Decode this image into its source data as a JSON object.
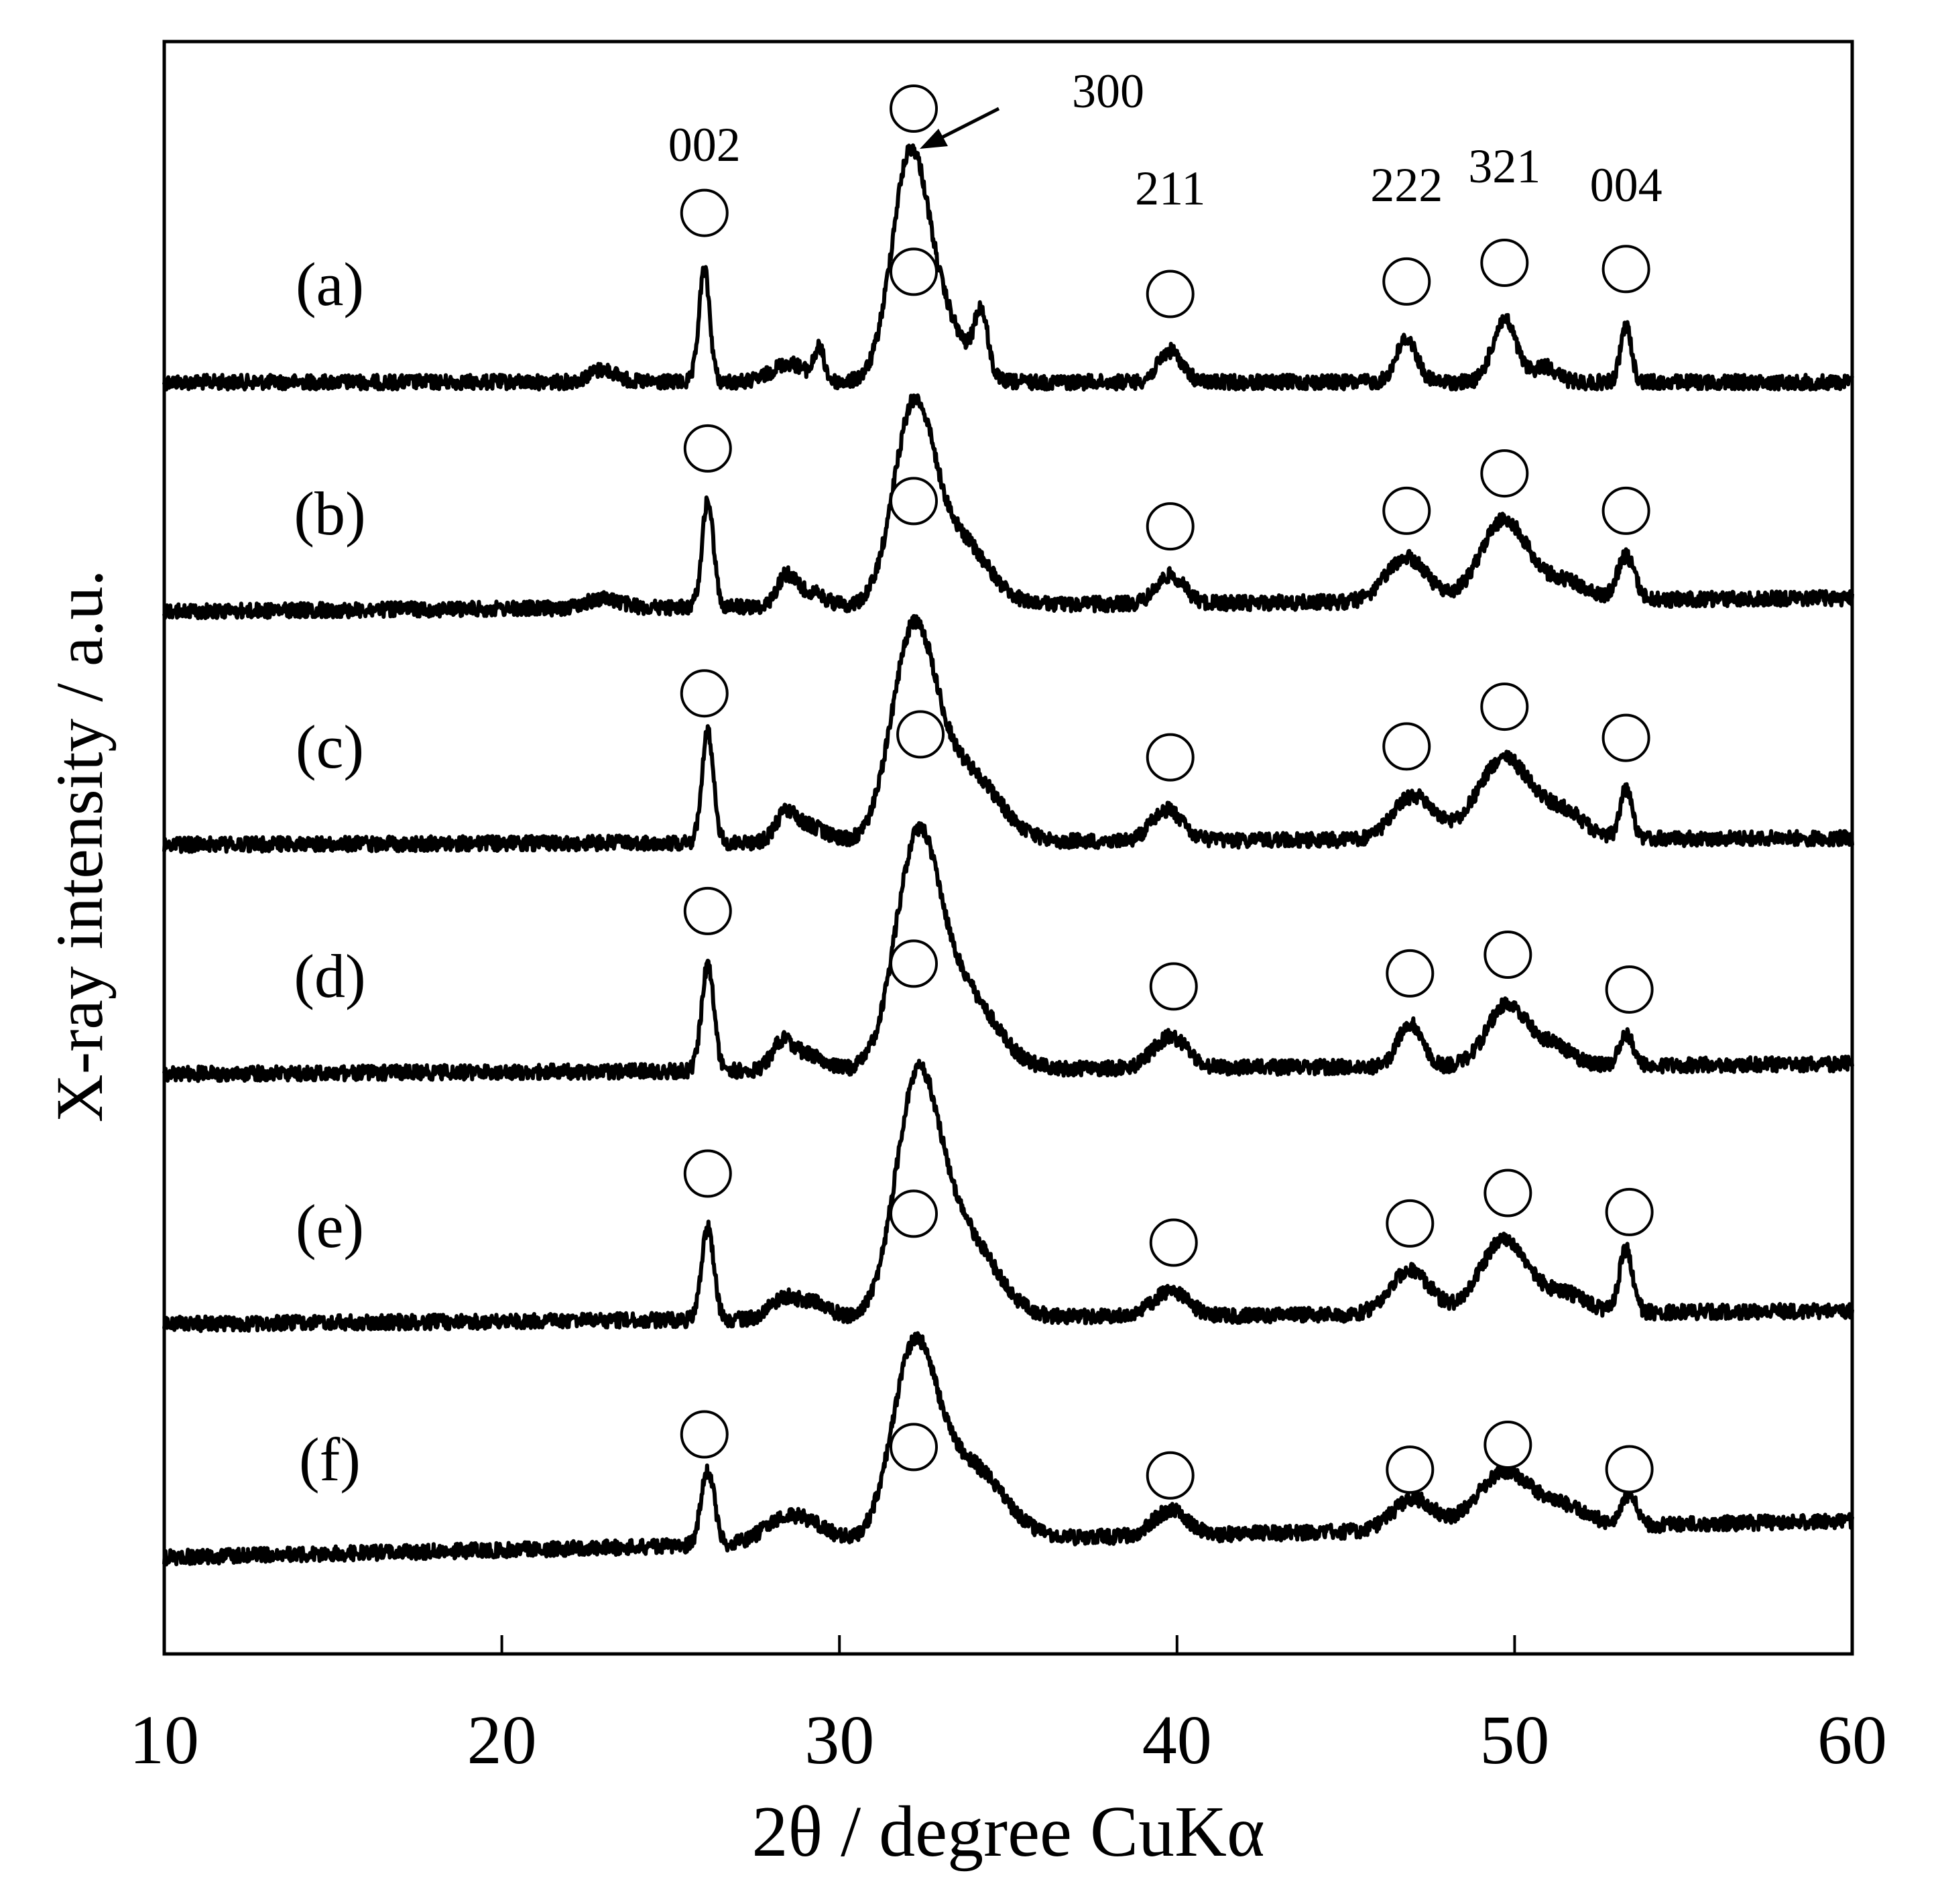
{
  "chart_data": {
    "type": "line",
    "title": "",
    "xlabel": "2θ / degree CuKα",
    "ylabel": "X-ray intensity / a.u.",
    "xlim": [
      10,
      60
    ],
    "xticks": [
      10,
      20,
      30,
      40,
      50,
      60
    ],
    "grid": false,
    "legend": "none",
    "reflections": [
      {
        "hkl": "002",
        "two_theta": 26.0
      },
      {
        "hkl": "300",
        "two_theta": 32.2
      },
      {
        "hkl": "211",
        "two_theta": 39.8
      },
      {
        "hkl": "222",
        "two_theta": 46.8
      },
      {
        "hkl": "321",
        "two_theta": 49.7
      },
      {
        "hkl": "004",
        "two_theta": 53.3
      }
    ],
    "marker_symbol": "circle",
    "series": [
      {
        "name": "(a)",
        "marker_positions": [
          26.0,
          32.2,
          39.8,
          46.8,
          49.7,
          53.3
        ],
        "peaks": [
          {
            "two_theta": 23.0,
            "height": 0.04,
            "width": 0.4
          },
          {
            "two_theta": 26.0,
            "height": 0.36,
            "width": 0.16
          },
          {
            "two_theta": 28.5,
            "height": 0.06,
            "width": 0.5
          },
          {
            "two_theta": 29.4,
            "height": 0.1,
            "width": 0.15
          },
          {
            "two_theta": 32.1,
            "height": 0.72,
            "width": 0.55
          },
          {
            "two_theta": 33.2,
            "height": 0.16,
            "width": 0.6
          },
          {
            "two_theta": 34.2,
            "height": 0.2,
            "width": 0.2
          },
          {
            "two_theta": 39.8,
            "height": 0.1,
            "width": 0.35
          },
          {
            "two_theta": 46.8,
            "height": 0.14,
            "width": 0.3
          },
          {
            "two_theta": 49.7,
            "height": 0.2,
            "width": 0.35
          },
          {
            "two_theta": 50.9,
            "height": 0.05,
            "width": 0.35
          },
          {
            "two_theta": 53.3,
            "height": 0.18,
            "width": 0.16
          }
        ]
      },
      {
        "name": "(b)",
        "marker_positions": [
          26.1,
          32.2,
          39.8,
          46.8,
          49.7,
          53.3
        ],
        "peaks": [
          {
            "two_theta": 23.0,
            "height": 0.03,
            "width": 0.5
          },
          {
            "two_theta": 26.1,
            "height": 0.34,
            "width": 0.17
          },
          {
            "two_theta": 28.4,
            "height": 0.08,
            "width": 0.25
          },
          {
            "two_theta": 29.0,
            "height": 0.05,
            "width": 0.5
          },
          {
            "two_theta": 32.2,
            "height": 0.62,
            "width": 0.6
          },
          {
            "two_theta": 33.6,
            "height": 0.2,
            "width": 0.8
          },
          {
            "two_theta": 39.8,
            "height": 0.09,
            "width": 0.4
          },
          {
            "two_theta": 46.8,
            "height": 0.14,
            "width": 0.6
          },
          {
            "two_theta": 49.7,
            "height": 0.26,
            "width": 0.7
          },
          {
            "two_theta": 51.5,
            "height": 0.06,
            "width": 0.6
          },
          {
            "two_theta": 53.3,
            "height": 0.14,
            "width": 0.25
          }
        ]
      },
      {
        "name": "(c)",
        "marker_positions": [
          26.0,
          32.4,
          39.8,
          46.8,
          49.7,
          53.3
        ],
        "peaks": [
          {
            "two_theta": 26.1,
            "height": 0.36,
            "width": 0.17
          },
          {
            "two_theta": 28.4,
            "height": 0.08,
            "width": 0.3
          },
          {
            "two_theta": 29.1,
            "height": 0.05,
            "width": 0.5
          },
          {
            "two_theta": 32.2,
            "height": 0.66,
            "width": 0.65
          },
          {
            "two_theta": 33.8,
            "height": 0.22,
            "width": 0.9
          },
          {
            "two_theta": 39.7,
            "height": 0.1,
            "width": 0.45
          },
          {
            "two_theta": 47.0,
            "height": 0.14,
            "width": 0.6
          },
          {
            "two_theta": 49.7,
            "height": 0.26,
            "width": 0.8
          },
          {
            "two_theta": 51.5,
            "height": 0.08,
            "width": 0.6
          },
          {
            "two_theta": 53.3,
            "height": 0.16,
            "width": 0.18
          }
        ]
      },
      {
        "name": "(d)",
        "marker_positions": [
          26.1,
          32.2,
          39.9,
          46.9,
          49.8,
          53.4
        ],
        "peaks": [
          {
            "two_theta": 26.1,
            "height": 0.34,
            "width": 0.18
          },
          {
            "two_theta": 28.3,
            "height": 0.08,
            "width": 0.3
          },
          {
            "two_theta": 29.0,
            "height": 0.05,
            "width": 0.5
          },
          {
            "two_theta": 32.3,
            "height": 0.7,
            "width": 0.65
          },
          {
            "two_theta": 33.7,
            "height": 0.24,
            "width": 0.9
          },
          {
            "two_theta": 39.8,
            "height": 0.1,
            "width": 0.5
          },
          {
            "two_theta": 46.9,
            "height": 0.14,
            "width": 0.35
          },
          {
            "two_theta": 49.8,
            "height": 0.2,
            "width": 0.6
          },
          {
            "two_theta": 51.2,
            "height": 0.06,
            "width": 0.5
          },
          {
            "two_theta": 53.3,
            "height": 0.1,
            "width": 0.2
          }
        ]
      },
      {
        "name": "(e)",
        "marker_positions": [
          26.1,
          32.2,
          39.9,
          46.9,
          49.8,
          53.4
        ],
        "peaks": [
          {
            "two_theta": 26.1,
            "height": 0.3,
            "width": 0.18
          },
          {
            "two_theta": 28.3,
            "height": 0.06,
            "width": 0.4
          },
          {
            "two_theta": 29.2,
            "height": 0.05,
            "width": 0.5
          },
          {
            "two_theta": 32.3,
            "height": 0.72,
            "width": 0.65
          },
          {
            "two_theta": 33.7,
            "height": 0.26,
            "width": 0.9
          },
          {
            "two_theta": 39.8,
            "height": 0.08,
            "width": 0.5
          },
          {
            "two_theta": 46.9,
            "height": 0.14,
            "width": 0.6
          },
          {
            "two_theta": 49.7,
            "height": 0.24,
            "width": 0.7
          },
          {
            "two_theta": 51.5,
            "height": 0.06,
            "width": 0.6
          },
          {
            "two_theta": 53.3,
            "height": 0.2,
            "width": 0.2
          }
        ]
      },
      {
        "name": "(f)",
        "marker_positions": [
          26.0,
          32.2,
          39.8,
          46.9,
          49.8,
          53.4
        ],
        "peaks": [
          {
            "two_theta": 26.1,
            "height": 0.24,
            "width": 0.2
          },
          {
            "two_theta": 28.2,
            "height": 0.05,
            "width": 0.6
          },
          {
            "two_theta": 29.0,
            "height": 0.06,
            "width": 0.7
          },
          {
            "two_theta": 32.2,
            "height": 0.58,
            "width": 0.65
          },
          {
            "two_theta": 33.8,
            "height": 0.24,
            "width": 1.0
          },
          {
            "two_theta": 39.8,
            "height": 0.08,
            "width": 0.5
          },
          {
            "two_theta": 47.0,
            "height": 0.1,
            "width": 0.6
          },
          {
            "two_theta": 49.7,
            "height": 0.18,
            "width": 0.8
          },
          {
            "two_theta": 51.5,
            "height": 0.06,
            "width": 0.7
          },
          {
            "two_theta": 53.4,
            "height": 0.1,
            "width": 0.2
          }
        ]
      }
    ]
  }
}
